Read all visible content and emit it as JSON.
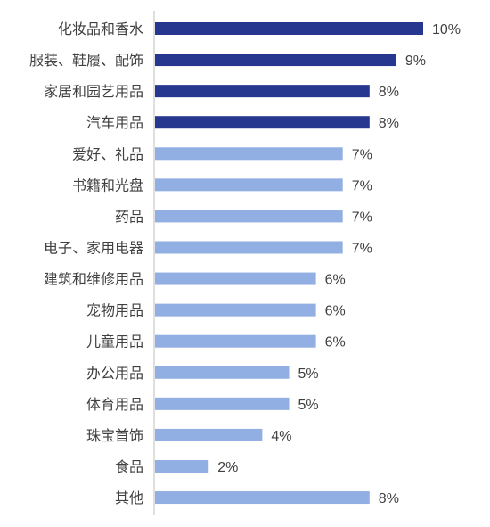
{
  "colors": {
    "highlight": "#27378F",
    "normal": "#91AFE2",
    "axis": "#BFBFBF",
    "text": "#404040"
  },
  "chart_data": {
    "type": "bar",
    "orientation": "horizontal",
    "categories": [
      "化妆品和香水",
      "服装、鞋履、配饰",
      "家居和园艺用品",
      "汽车用品",
      "爱好、礼品",
      "书籍和光盘",
      "药品",
      "电子、家用电器",
      "建筑和维修用品",
      "宠物用品",
      "儿童用品",
      "办公用品",
      "体育用品",
      "珠宝首饰",
      "食品",
      "其他"
    ],
    "values": [
      10,
      9,
      8,
      8,
      7,
      7,
      7,
      7,
      6,
      6,
      6,
      5,
      5,
      4,
      2,
      8
    ],
    "data_labels": [
      "10%",
      "9%",
      "8%",
      "8%",
      "7%",
      "7%",
      "7%",
      "7%",
      "6%",
      "6%",
      "6%",
      "5%",
      "5%",
      "4%",
      "2%",
      "8%"
    ],
    "highlighted": [
      true,
      true,
      true,
      true,
      false,
      false,
      false,
      false,
      false,
      false,
      false,
      false,
      false,
      false,
      false,
      false
    ],
    "unit": "%",
    "xlim": [
      0,
      10
    ],
    "grid": false,
    "legend": "none"
  }
}
